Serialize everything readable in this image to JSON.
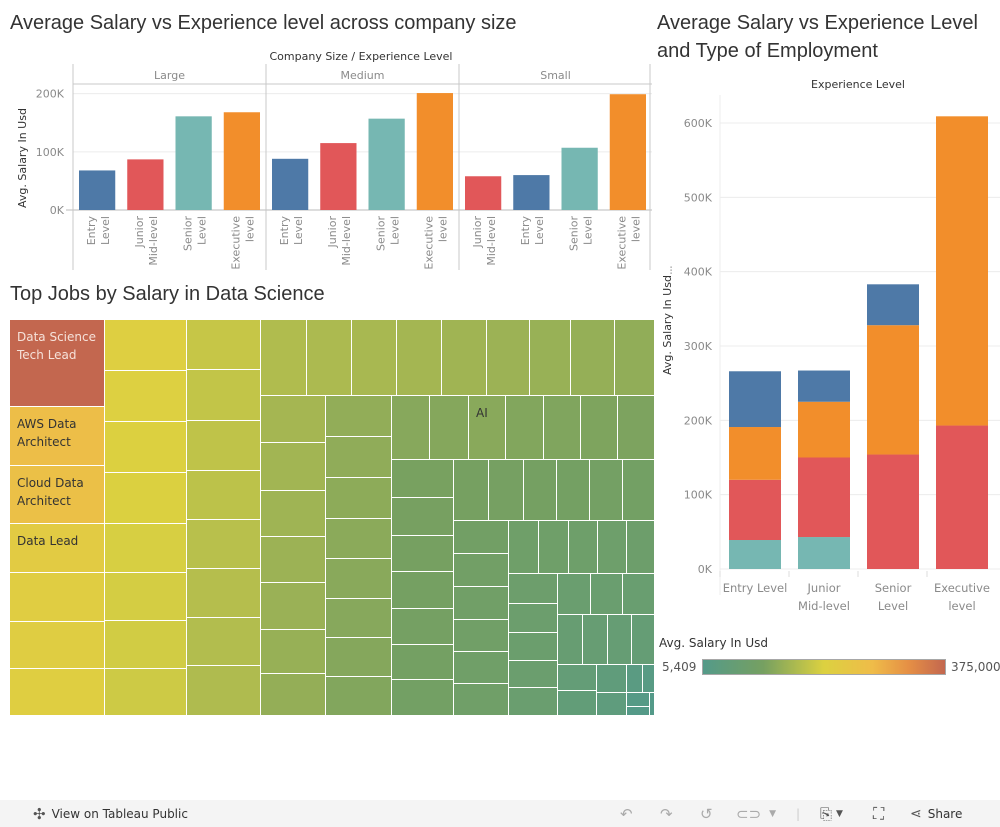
{
  "titles": {
    "chart1": "Average Salary vs Experience level across company size",
    "chart2_line1": "Average Salary vs Experience Level",
    "chart2_line2": "and Type of Employment",
    "treemap": "Top Jobs by Salary in Data Science"
  },
  "colors": {
    "entry": "#4e79a7",
    "junior": "#e15759",
    "senior": "#76b7b2",
    "executive": "#f28e2b",
    "gridline": "#ececec",
    "axis_text": "#8a8a8a"
  },
  "chart_data": [
    {
      "type": "bar",
      "title": "Average Salary vs Experience level across company size",
      "header": "Company Size  /  Experience Level",
      "ylabel": "Avg. Salary In Usd",
      "ylim": [
        0,
        220000
      ],
      "yticks": [
        0,
        100000,
        200000
      ],
      "ytick_labels": [
        "0K",
        "100K",
        "200K"
      ],
      "grid": true,
      "panels": [
        {
          "name": "Large",
          "bars": [
            {
              "label": [
                "Entry",
                "Level"
              ],
              "level": "entry",
              "value": 68000
            },
            {
              "label": [
                "Junior",
                "Mid-level"
              ],
              "level": "junior",
              "value": 87000
            },
            {
              "label": [
                "Senior",
                "Level"
              ],
              "level": "senior",
              "value": 161000
            },
            {
              "label": [
                "Executive",
                "level"
              ],
              "level": "executive",
              "value": 168000
            }
          ]
        },
        {
          "name": "Medium",
          "bars": [
            {
              "label": [
                "Entry",
                "Level"
              ],
              "level": "entry",
              "value": 88000
            },
            {
              "label": [
                "Junior",
                "Mid-level"
              ],
              "level": "junior",
              "value": 115000
            },
            {
              "label": [
                "Senior",
                "Level"
              ],
              "level": "senior",
              "value": 157000
            },
            {
              "label": [
                "Executive",
                "level"
              ],
              "level": "executive",
              "value": 201000
            }
          ]
        },
        {
          "name": "Small",
          "bars": [
            {
              "label": [
                "Junior",
                "Mid-level"
              ],
              "level": "junior",
              "value": 58000
            },
            {
              "label": [
                "Entry",
                "Level"
              ],
              "level": "entry",
              "value": 60000
            },
            {
              "label": [
                "Senior",
                "Level"
              ],
              "level": "senior",
              "value": 107000
            },
            {
              "label": [
                "Executive",
                "level"
              ],
              "level": "executive",
              "value": 199000
            }
          ]
        }
      ]
    },
    {
      "type": "bar",
      "stacked": true,
      "title": "Average Salary vs Experience Level and Type of Employment",
      "header": "Experience Level",
      "ylabel": "Avg. Salary In Usd",
      "ylim": [
        0,
        630000
      ],
      "yticks": [
        0,
        100000,
        200000,
        300000,
        400000,
        500000,
        600000
      ],
      "ytick_labels": [
        "0K",
        "100K",
        "200K",
        "300K",
        "400K",
        "500K",
        "600K"
      ],
      "grid": true,
      "categories": [
        [
          "Entry Level"
        ],
        [
          "Junior",
          "Mid-level"
        ],
        [
          "Senior",
          "Level"
        ],
        [
          "Executive",
          "level"
        ]
      ],
      "series": [
        {
          "name": "teal segment",
          "color_key": "senior",
          "values": [
            39000,
            43000,
            0,
            0
          ]
        },
        {
          "name": "red segment",
          "color_key": "junior",
          "values": [
            81000,
            107000,
            154000,
            193000
          ]
        },
        {
          "name": "orange segment",
          "color_key": "executive",
          "values": [
            71000,
            75000,
            174000,
            416000
          ]
        },
        {
          "name": "blue segment",
          "color_key": "entry",
          "values": [
            75000,
            42000,
            55000,
            0
          ]
        }
      ]
    },
    {
      "type": "heatmap",
      "subtype": "treemap",
      "title": "Top Jobs by Salary in Data Science",
      "color_legend": {
        "title": "Avg. Salary In Usd",
        "min_label": "5,409",
        "max_label": "375,000",
        "min": 5409,
        "max": 375000
      },
      "labeled_cells": [
        {
          "label": "Data Science Tech Lead",
          "value": 375000
        },
        {
          "label": "AWS Data Architect",
          "value": 258000
        },
        {
          "label": "Cloud Data Architect",
          "value": 250000
        },
        {
          "label": "Data Lead",
          "value": 212000
        },
        {
          "label": "AI",
          "value": 115000
        }
      ]
    }
  ],
  "legend": {
    "title": "Avg. Salary In Usd",
    "min": "5,409",
    "max": "375,000"
  },
  "footer": {
    "view_label": "View on Tableau Public",
    "share_label": "Share"
  }
}
